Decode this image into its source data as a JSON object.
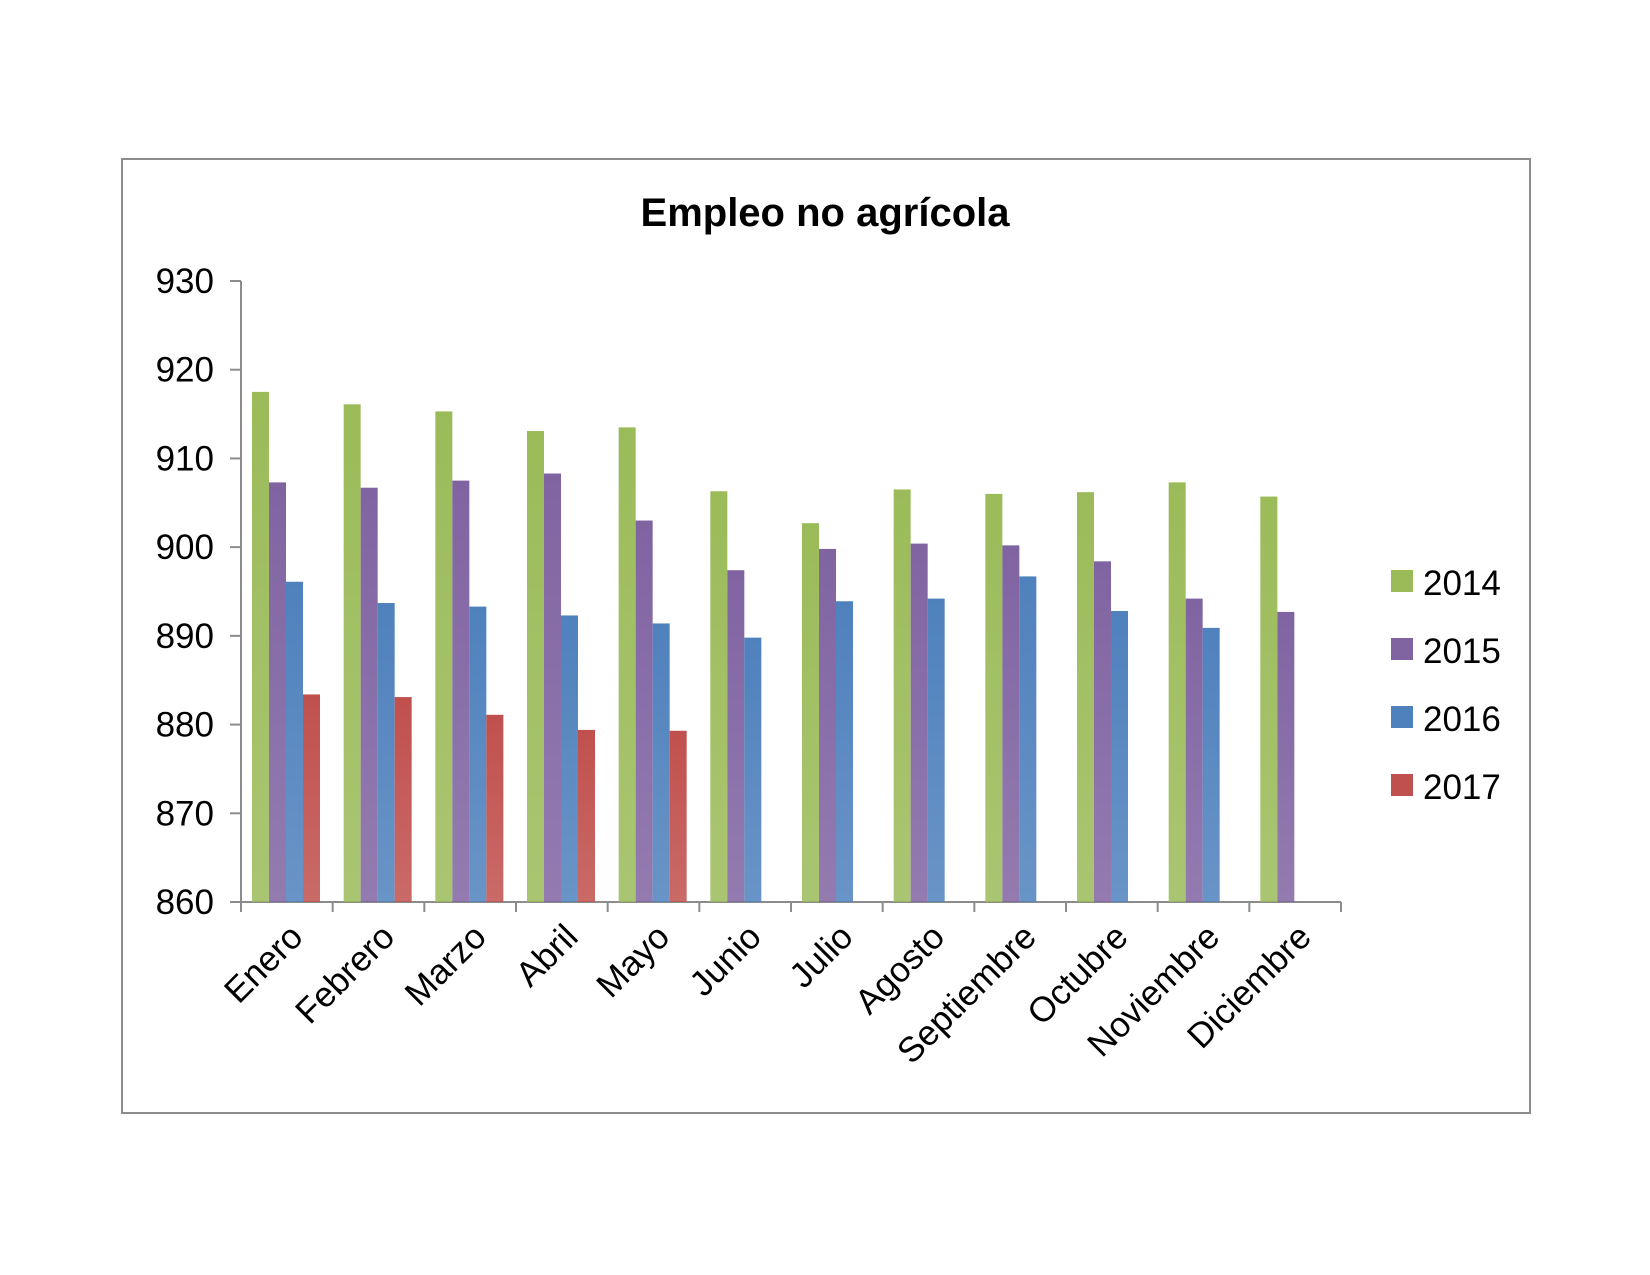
{
  "chart_data": {
    "type": "bar",
    "title": "Empleo no agrícola",
    "xlabel": "",
    "ylabel": "",
    "ylim": [
      860,
      930
    ],
    "yticks": [
      860,
      870,
      880,
      890,
      900,
      910,
      920,
      930
    ],
    "grid": false,
    "legend_position": "right",
    "categories": [
      "Enero",
      "Febrero",
      "Marzo",
      "Abril",
      "Mayo",
      "Junio",
      "Julio",
      "Agosto",
      "Septiembre",
      "Octubre",
      "Noviembre",
      "Diciembre"
    ],
    "series": [
      {
        "name": "2014",
        "color": "#9bbb59",
        "values": [
          917.5,
          916.1,
          915.3,
          913.1,
          913.5,
          906.3,
          902.7,
          906.5,
          906.0,
          906.2,
          907.3,
          905.7
        ]
      },
      {
        "name": "2015",
        "color": "#8064a2",
        "values": [
          907.3,
          906.7,
          907.5,
          908.3,
          903.0,
          897.4,
          899.8,
          900.4,
          900.2,
          898.4,
          894.2,
          892.7
        ]
      },
      {
        "name": "2016",
        "color": "#4f81bd",
        "values": [
          896.1,
          893.7,
          893.3,
          892.3,
          891.4,
          889.8,
          893.9,
          894.2,
          896.7,
          892.8,
          890.9,
          null
        ]
      },
      {
        "name": "2017",
        "color": "#c0504d",
        "values": [
          883.4,
          883.1,
          881.1,
          879.4,
          879.3,
          null,
          null,
          null,
          null,
          null,
          null,
          null
        ]
      }
    ]
  }
}
